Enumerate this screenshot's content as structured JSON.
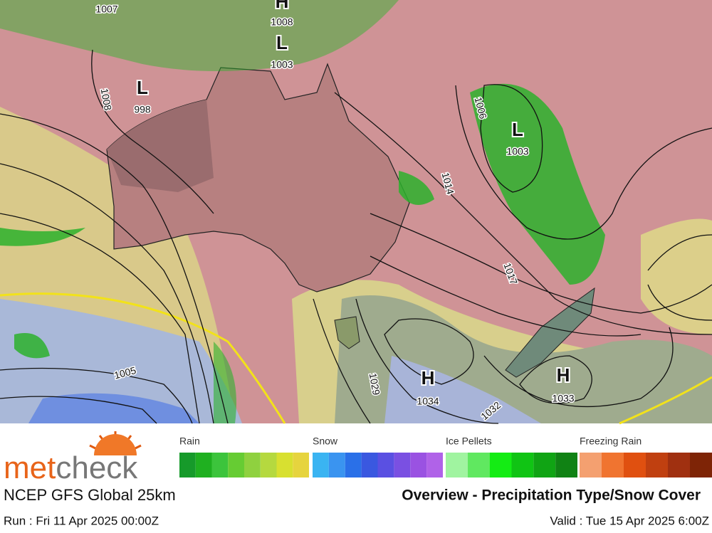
{
  "map": {
    "centers": [
      {
        "letter": "H",
        "pressure": 1008
      },
      {
        "letter": "L",
        "pressure": 1003
      },
      {
        "letter": "L",
        "pressure": 998
      },
      {
        "letter": "L",
        "pressure": 1003
      },
      {
        "letter": "H",
        "pressure": 1034
      },
      {
        "letter": "H",
        "pressure": 1033
      }
    ],
    "isobar_labels": [
      1007,
      1008,
      1006,
      1014,
      1017,
      1005,
      1029,
      1032
    ]
  },
  "legend": [
    {
      "label": "Rain",
      "colors": [
        "#169a2a",
        "#1fb020",
        "#3cc43c",
        "#66cc33",
        "#8fd13f",
        "#b5d93f",
        "#d8e030",
        "#e6d43e"
      ]
    },
    {
      "label": "Snow",
      "colors": [
        "#3ab4f2",
        "#3a94f0",
        "#2a70e8",
        "#3a58e0",
        "#5a50e2",
        "#7a50e2",
        "#9a52e2",
        "#b062e8"
      ]
    },
    {
      "label": "Ice Pellets",
      "colors": [
        "#a0f4a0",
        "#60e860",
        "#14ec14",
        "#10c414",
        "#10a414",
        "#108214"
      ]
    },
    {
      "label": "Freezing Rain",
      "colors": [
        "#f4a070",
        "#f07430",
        "#e05010",
        "#c04010",
        "#a03010",
        "#7e2406"
      ]
    }
  ],
  "logo": {
    "part1": "met",
    "part2": "check"
  },
  "model": "NCEP GFS Global 25km",
  "title": "Overview - Precipitation Type/Snow Cover",
  "run": "Run : Fri 11 Apr 2025 00:00Z",
  "valid": "Valid : Tue 15 Apr 2025 6:00Z"
}
